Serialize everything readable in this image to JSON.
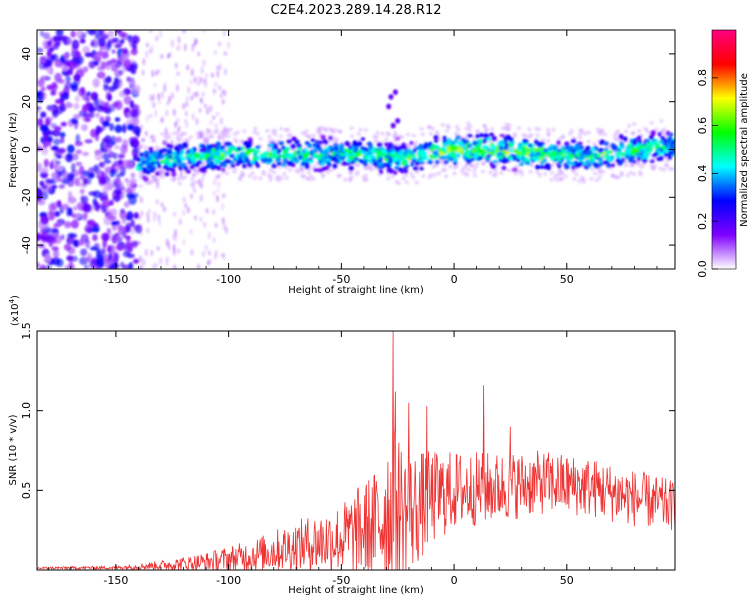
{
  "title": "C2E4.2023.289.14.28.R12",
  "chart_data": [
    {
      "type": "heatmap",
      "name": "spectrogram",
      "xlabel": "Height of straight line (km)",
      "ylabel": "Frequency (Hz)",
      "xlim": [
        -185,
        98
      ],
      "ylim": [
        -50,
        50
      ],
      "xticks": [
        -150,
        -100,
        -50,
        0,
        50
      ],
      "xtick_labels": [
        "-150",
        "-100",
        "-50",
        "0",
        "50"
      ],
      "yticks": [
        40,
        20,
        0,
        -20,
        -40
      ],
      "ytick_labels": [
        "40",
        "20",
        "0",
        "-20",
        "-40"
      ],
      "colorbar": {
        "label": "Normalized spectral amplitude",
        "range": [
          0.0,
          1.0
        ],
        "ticks": [
          0.0,
          0.2,
          0.4,
          0.6,
          0.8
        ],
        "tick_labels": [
          "0.0",
          "0.2",
          "0.4",
          "0.6",
          "0.8"
        ],
        "colors": [
          "#ffffff",
          "#7f00ff",
          "#0000ff",
          "#00ffff",
          "#00ff00",
          "#ffff00",
          "#ff0000",
          "#ff0080"
        ]
      },
      "noise_region_x": [
        -185,
        -140
      ],
      "band_x": [
        -140,
        98
      ],
      "band_center_hz": [
        {
          "x": -140,
          "y": -6
        },
        {
          "x": -120,
          "y": -3
        },
        {
          "x": -100,
          "y": -2
        },
        {
          "x": -80,
          "y": -2
        },
        {
          "x": -60,
          "y": -2
        },
        {
          "x": -40,
          "y": -2
        },
        {
          "x": -30,
          "y": -3
        },
        {
          "x": -20,
          "y": -4
        },
        {
          "x": -10,
          "y": -1
        },
        {
          "x": 0,
          "y": 0
        },
        {
          "x": 20,
          "y": 0
        },
        {
          "x": 40,
          "y": -2
        },
        {
          "x": 60,
          "y": -3
        },
        {
          "x": 80,
          "y": 0
        },
        {
          "x": 98,
          "y": 2
        }
      ],
      "peak_amplitude_x": [
        -10,
        40
      ]
    },
    {
      "type": "line",
      "name": "snr",
      "xlabel": "Height of straight line (km)",
      "ylabel": "SNR (10 * v/v)",
      "scale_label": "(x10",
      "scale_exp": "4",
      "scale_close": ")",
      "xlim": [
        -185,
        98
      ],
      "ylim": [
        0,
        15000
      ],
      "xticks": [
        -150,
        -100,
        -50,
        0,
        50
      ],
      "xtick_labels": [
        "-150",
        "-100",
        "-50",
        "0",
        "50"
      ],
      "yticks": [
        5000,
        10000,
        15000
      ],
      "ytick_labels": [
        "0.5",
        "1.0",
        "1.5"
      ],
      "color": "#ee3333",
      "envelope": [
        {
          "x": -185,
          "mean": 120,
          "amp": 80
        },
        {
          "x": -150,
          "mean": 150,
          "amp": 100
        },
        {
          "x": -130,
          "mean": 300,
          "amp": 300
        },
        {
          "x": -110,
          "mean": 500,
          "amp": 600
        },
        {
          "x": -90,
          "mean": 900,
          "amp": 1000
        },
        {
          "x": -70,
          "mean": 1500,
          "amp": 1600
        },
        {
          "x": -50,
          "mean": 2000,
          "amp": 2200
        },
        {
          "x": -35,
          "mean": 2800,
          "amp": 3500
        },
        {
          "x": -28,
          "mean": 4000,
          "amp": 5500
        },
        {
          "x": -20,
          "mean": 3500,
          "amp": 4000
        },
        {
          "x": -10,
          "mean": 4500,
          "amp": 3000
        },
        {
          "x": 0,
          "mean": 5000,
          "amp": 2500
        },
        {
          "x": 20,
          "mean": 5200,
          "amp": 2200
        },
        {
          "x": 40,
          "mean": 5500,
          "amp": 2000
        },
        {
          "x": 60,
          "mean": 5200,
          "amp": 1900
        },
        {
          "x": 80,
          "mean": 4500,
          "amp": 1800
        },
        {
          "x": 98,
          "mean": 4000,
          "amp": 1600
        }
      ],
      "peaks": [
        {
          "x": -27,
          "y": 15000
        },
        {
          "x": -26,
          "y": 11200
        },
        {
          "x": -20,
          "y": 10500
        },
        {
          "x": -12,
          "y": 10300
        },
        {
          "x": 13,
          "y": 11600
        },
        {
          "x": 25,
          "y": 9000
        }
      ]
    }
  ]
}
